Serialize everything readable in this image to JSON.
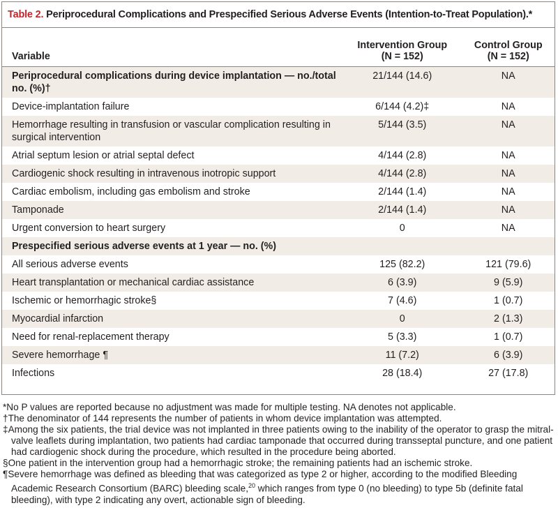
{
  "header": {
    "label": "Table 2.",
    "title": "Periprocedural Complications and Prespecified Serious Adverse Events (Intention-to-Treat Population).*"
  },
  "columns": {
    "variable": "Variable",
    "intervention": {
      "name": "Intervention Group",
      "n": "(N = 152)"
    },
    "control": {
      "name": "Control Group",
      "n": "(N = 152)"
    }
  },
  "sections": [
    {
      "heading": {
        "label": "Periprocedural complications during device implantation — no./total no. (%)†",
        "intervention": "21/144 (14.6)",
        "control": "NA"
      },
      "rows": [
        [
          "Device-implantation failure",
          "6/144 (4.2)‡",
          "NA"
        ],
        [
          "Hemorrhage resulting in transfusion or vascular complication resulting in surgical intervention",
          "5/144 (3.5)",
          "NA"
        ],
        [
          "Atrial septum lesion or atrial septal defect",
          "4/144 (2.8)",
          "NA"
        ],
        [
          "Cardiogenic shock resulting in intravenous inotropic support",
          "4/144 (2.8)",
          "NA"
        ],
        [
          "Cardiac embolism, including gas embolism and stroke",
          "2/144 (1.4)",
          "NA"
        ],
        [
          "Tamponade",
          "2/144 (1.4)",
          "NA"
        ],
        [
          "Urgent conversion to heart surgery",
          "0",
          "NA"
        ]
      ]
    },
    {
      "heading": {
        "label": "Prespecified serious adverse events at 1 year — no. (%)"
      },
      "rows": [
        [
          "All serious adverse events",
          "125 (82.2)",
          "121 (79.6)"
        ],
        [
          "Heart transplantation or mechanical cardiac assistance",
          "6 (3.9)",
          "9 (5.9)"
        ],
        [
          "Ischemic or hemorrhagic stroke§",
          "7 (4.6)",
          "1 (0.7)"
        ],
        [
          "Myocardial infarction",
          "0",
          "2 (1.3)"
        ],
        [
          "Need for renal-replacement therapy",
          "5 (3.3)",
          "1 (0.7)"
        ],
        [
          "Severe hemorrhage ¶",
          "11 (7.2)",
          "6 (3.9)"
        ],
        [
          "Infections",
          "28 (18.4)",
          "27 (17.8)"
        ]
      ]
    }
  ],
  "footnotes": [
    {
      "symbol": "*",
      "text": "No P values are reported because no adjustment was made for multiple testing. NA denotes not applicable."
    },
    {
      "symbol": "†",
      "text": "The denominator of 144 represents the number of patients in whom device implantation was attempted."
    },
    {
      "symbol": "‡",
      "text": "Among the six patients, the trial device was not implanted in three patients owing to the inability of the operator to grasp the mitral-valve leaflets during implantation, two patients had cardiac tamponade that occurred during transseptal puncture, and one patient had cardiogenic shock during the procedure, which resulted in the procedure being aborted."
    },
    {
      "symbol": "§",
      "text": "One patient in the intervention group had a hemorrhagic stroke; the remaining patients had an ischemic stroke."
    },
    {
      "symbol": "¶",
      "text": "Severe hemorrhage was defined as bleeding that was categorized as type 2 or higher, according to the modified Bleeding Academic Research Consortium (BARC) bleeding scale,",
      "superscript": "20",
      "text_after": " which ranges from type 0 (no bleeding) to type 5b (definite fatal bleeding), with type 2 indicating any overt, actionable sign of bleeding."
    }
  ]
}
